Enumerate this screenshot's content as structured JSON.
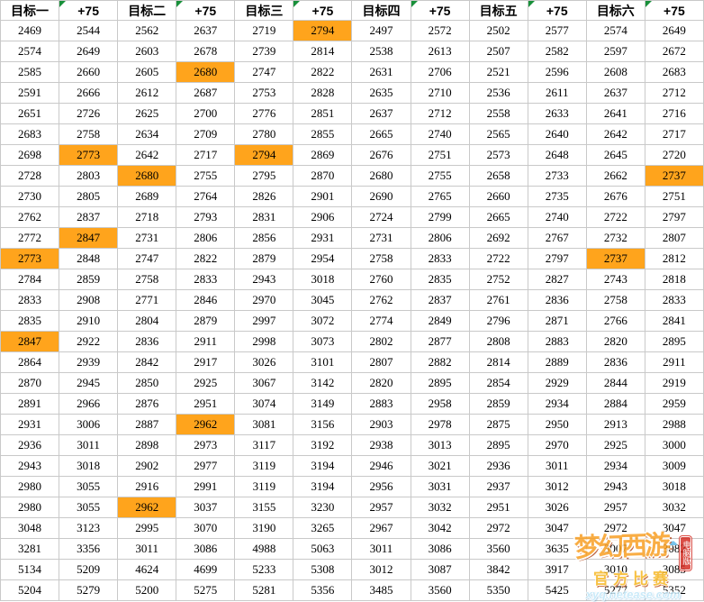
{
  "table": {
    "headers": [
      "目标一",
      "+75",
      "目标二",
      "+75",
      "目标三",
      "+75",
      "目标四",
      "+75",
      "目标五",
      "+75",
      "目标六",
      "+75"
    ],
    "flag_columns": [
      1,
      3,
      5,
      7,
      9,
      11
    ],
    "rows": [
      [
        2469,
        2544,
        2562,
        2637,
        2719,
        2794,
        2497,
        2572,
        2502,
        2577,
        2574,
        2649
      ],
      [
        2574,
        2649,
        2603,
        2678,
        2739,
        2814,
        2538,
        2613,
        2507,
        2582,
        2597,
        2672
      ],
      [
        2585,
        2660,
        2605,
        2680,
        2747,
        2822,
        2631,
        2706,
        2521,
        2596,
        2608,
        2683
      ],
      [
        2591,
        2666,
        2612,
        2687,
        2753,
        2828,
        2635,
        2710,
        2536,
        2611,
        2637,
        2712
      ],
      [
        2651,
        2726,
        2625,
        2700,
        2776,
        2851,
        2637,
        2712,
        2558,
        2633,
        2641,
        2716
      ],
      [
        2683,
        2758,
        2634,
        2709,
        2780,
        2855,
        2665,
        2740,
        2565,
        2640,
        2642,
        2717
      ],
      [
        2698,
        2773,
        2642,
        2717,
        2794,
        2869,
        2676,
        2751,
        2573,
        2648,
        2645,
        2720
      ],
      [
        2728,
        2803,
        2680,
        2755,
        2795,
        2870,
        2680,
        2755,
        2658,
        2733,
        2662,
        2737
      ],
      [
        2730,
        2805,
        2689,
        2764,
        2826,
        2901,
        2690,
        2765,
        2660,
        2735,
        2676,
        2751
      ],
      [
        2762,
        2837,
        2718,
        2793,
        2831,
        2906,
        2724,
        2799,
        2665,
        2740,
        2722,
        2797
      ],
      [
        2772,
        2847,
        2731,
        2806,
        2856,
        2931,
        2731,
        2806,
        2692,
        2767,
        2732,
        2807
      ],
      [
        2773,
        2848,
        2747,
        2822,
        2879,
        2954,
        2758,
        2833,
        2722,
        2797,
        2737,
        2812
      ],
      [
        2784,
        2859,
        2758,
        2833,
        2943,
        3018,
        2760,
        2835,
        2752,
        2827,
        2743,
        2818
      ],
      [
        2833,
        2908,
        2771,
        2846,
        2970,
        3045,
        2762,
        2837,
        2761,
        2836,
        2758,
        2833
      ],
      [
        2835,
        2910,
        2804,
        2879,
        2997,
        3072,
        2774,
        2849,
        2796,
        2871,
        2766,
        2841
      ],
      [
        2847,
        2922,
        2836,
        2911,
        2998,
        3073,
        2802,
        2877,
        2808,
        2883,
        2820,
        2895
      ],
      [
        2864,
        2939,
        2842,
        2917,
        3026,
        3101,
        2807,
        2882,
        2814,
        2889,
        2836,
        2911
      ],
      [
        2870,
        2945,
        2850,
        2925,
        3067,
        3142,
        2820,
        2895,
        2854,
        2929,
        2844,
        2919
      ],
      [
        2891,
        2966,
        2876,
        2951,
        3074,
        3149,
        2883,
        2958,
        2859,
        2934,
        2884,
        2959
      ],
      [
        2931,
        3006,
        2887,
        2962,
        3081,
        3156,
        2903,
        2978,
        2875,
        2950,
        2913,
        2988
      ],
      [
        2936,
        3011,
        2898,
        2973,
        3117,
        3192,
        2938,
        3013,
        2895,
        2970,
        2925,
        3000
      ],
      [
        2943,
        3018,
        2902,
        2977,
        3119,
        3194,
        2946,
        3021,
        2936,
        3011,
        2934,
        3009
      ],
      [
        2980,
        3055,
        2916,
        2991,
        3119,
        3194,
        2956,
        3031,
        2937,
        3012,
        2943,
        3018
      ],
      [
        2980,
        3055,
        2962,
        3037,
        3155,
        3230,
        2957,
        3032,
        2951,
        3026,
        2957,
        3032
      ],
      [
        3048,
        3123,
        2995,
        3070,
        3190,
        3265,
        2967,
        3042,
        2972,
        3047,
        2972,
        3047
      ],
      [
        3281,
        3356,
        3011,
        3086,
        4988,
        5063,
        3011,
        3086,
        3560,
        3635,
        3007,
        3082
      ],
      [
        5134,
        5209,
        4624,
        4699,
        5233,
        5308,
        3012,
        3087,
        3842,
        3917,
        3010,
        3085
      ],
      [
        5204,
        5279,
        5200,
        5275,
        5281,
        5356,
        3485,
        3560,
        5350,
        5425,
        5277,
        5352
      ]
    ],
    "highlight_cells": [
      [
        0,
        5
      ],
      [
        2,
        3
      ],
      [
        6,
        1
      ],
      [
        6,
        4
      ],
      [
        7,
        2
      ],
      [
        7,
        11
      ],
      [
        10,
        1
      ],
      [
        11,
        0
      ],
      [
        11,
        10
      ],
      [
        15,
        0
      ],
      [
        19,
        3
      ],
      [
        23,
        2
      ]
    ]
  },
  "colors": {
    "highlight": "#FFA41C",
    "gridline": "#C9C9C9",
    "flag_green": "#18903A",
    "watermark_orange": "#F89C1C",
    "watermark_red": "#D3281E",
    "watermark_yellow": "#F6B41B",
    "watermark_blue": "#BFE6F8"
  },
  "watermark": {
    "title": "梦幻西游",
    "cloud_icon": "☁",
    "badge": "电脑版",
    "subtitle": "官方比赛",
    "url": "xyq.netease.com"
  }
}
